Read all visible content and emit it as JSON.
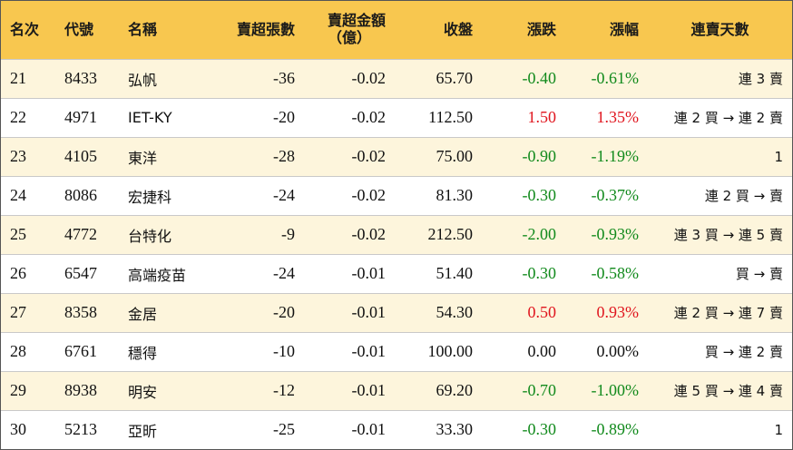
{
  "colors": {
    "header_bg": "#f8c74f",
    "odd_row_bg": "#fdf5dc",
    "even_row_bg": "#ffffff",
    "up": "#e0151e",
    "down": "#118a1c",
    "flat": "#111111"
  },
  "headers": {
    "rank": "名次",
    "code": "代號",
    "name": "名稱",
    "net_sell_lots": "賣超張數",
    "net_sell_amount_line1": "賣超金額",
    "net_sell_amount_line2": "（億）",
    "close": "收盤",
    "change": "漲跌",
    "change_pct": "漲幅",
    "streak": "連賣天數"
  },
  "rows": [
    {
      "rank": "21",
      "code": "8433",
      "name": "弘帆",
      "lots": "-36",
      "amount": "-0.02",
      "close": "65.70",
      "change": "-0.40",
      "pct": "-0.61%",
      "streak": "連 3 賣",
      "dir": "down"
    },
    {
      "rank": "22",
      "code": "4971",
      "name": "IET-KY",
      "lots": "-20",
      "amount": "-0.02",
      "close": "112.50",
      "change": "1.50",
      "pct": "1.35%",
      "streak": "連 2 買 → 連 2 賣",
      "dir": "up"
    },
    {
      "rank": "23",
      "code": "4105",
      "name": "東洋",
      "lots": "-28",
      "amount": "-0.02",
      "close": "75.00",
      "change": "-0.90",
      "pct": "-1.19%",
      "streak": "1",
      "dir": "down"
    },
    {
      "rank": "24",
      "code": "8086",
      "name": "宏捷科",
      "lots": "-24",
      "amount": "-0.02",
      "close": "81.30",
      "change": "-0.30",
      "pct": "-0.37%",
      "streak": "連 2 買 → 賣",
      "dir": "down"
    },
    {
      "rank": "25",
      "code": "4772",
      "name": "台特化",
      "lots": "-9",
      "amount": "-0.02",
      "close": "212.50",
      "change": "-2.00",
      "pct": "-0.93%",
      "streak": "連 3 買 → 連 5 賣",
      "dir": "down"
    },
    {
      "rank": "26",
      "code": "6547",
      "name": "高端疫苗",
      "lots": "-24",
      "amount": "-0.01",
      "close": "51.40",
      "change": "-0.30",
      "pct": "-0.58%",
      "streak": "買 → 賣",
      "dir": "down"
    },
    {
      "rank": "27",
      "code": "8358",
      "name": "金居",
      "lots": "-20",
      "amount": "-0.01",
      "close": "54.30",
      "change": "0.50",
      "pct": "0.93%",
      "streak": "連 2 買 → 連 7 賣",
      "dir": "up"
    },
    {
      "rank": "28",
      "code": "6761",
      "name": "穩得",
      "lots": "-10",
      "amount": "-0.01",
      "close": "100.00",
      "change": "0.00",
      "pct": "0.00%",
      "streak": "買 → 連 2 賣",
      "dir": "flat"
    },
    {
      "rank": "29",
      "code": "8938",
      "name": "明安",
      "lots": "-12",
      "amount": "-0.01",
      "close": "69.20",
      "change": "-0.70",
      "pct": "-1.00%",
      "streak": "連 5 買 → 連 4 賣",
      "dir": "down"
    },
    {
      "rank": "30",
      "code": "5213",
      "name": "亞昕",
      "lots": "-25",
      "amount": "-0.01",
      "close": "33.30",
      "change": "-0.30",
      "pct": "-0.89%",
      "streak": "1",
      "dir": "down"
    }
  ]
}
